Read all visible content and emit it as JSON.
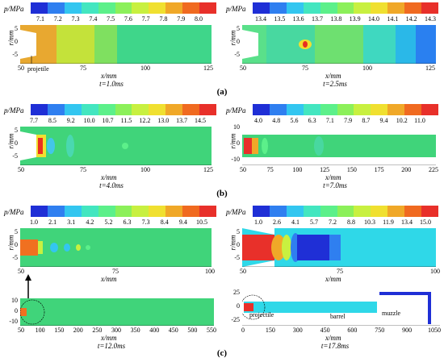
{
  "colorbar_colors": [
    "#1f2fd6",
    "#2f7ff0",
    "#33c6f0",
    "#43e6c0",
    "#5cf08a",
    "#8cf05a",
    "#c8f040",
    "#f0e030",
    "#f0a828",
    "#f06a20",
    "#e8302a"
  ],
  "ylabel": "r/mm",
  "xlabel": "x/mm",
  "pressure_unit": "p/MPa",
  "subfigure_labels": [
    "(a)",
    "(b)",
    "(c)"
  ],
  "panels": {
    "a1": {
      "ticks": [
        "7.1",
        "7.2",
        "7.3",
        "7.4",
        "7.5",
        "7.6",
        "7.7",
        "7.8",
        "7.9",
        "8.0"
      ],
      "yticks": [
        "5",
        "0",
        "-5"
      ],
      "xticks": [
        "50",
        "75",
        "100",
        "125"
      ],
      "time": "t=1.0ms",
      "annotation": "projetile"
    },
    "a2": {
      "ticks": [
        "13.4",
        "13.5",
        "13.6",
        "13.7",
        "13.8",
        "13.9",
        "14.0",
        "14.1",
        "14.2",
        "14.3"
      ],
      "yticks": [
        "5",
        "0",
        "-5"
      ],
      "xticks": [
        "50",
        "75",
        "100",
        "125"
      ],
      "time": "t=2.5ms"
    },
    "b1": {
      "ticks": [
        "7.7",
        "8.5",
        "9.2",
        "10.0",
        "10.7",
        "11.5",
        "12.2",
        "13.0",
        "13.7",
        "14.5"
      ],
      "yticks": [
        "5",
        "0",
        "-5"
      ],
      "xticks": [
        "50",
        "75",
        "100",
        "125"
      ],
      "time": "t=4.0ms"
    },
    "b2": {
      "ticks": [
        "4.0",
        "4.8",
        "5.6",
        "6.3",
        "7.1",
        "7.9",
        "8.7",
        "9.4",
        "10.2",
        "11.0"
      ],
      "yticks": [
        "10",
        "0",
        "-10"
      ],
      "xticks": [
        "50",
        "75",
        "100",
        "125",
        "150",
        "175",
        "200",
        "225"
      ],
      "time": "t=7.0ms"
    },
    "c1": {
      "ticks": [
        "1.0",
        "2.1",
        "3.1",
        "4.2",
        "5.2",
        "6.3",
        "7.3",
        "8.4",
        "9.4",
        "10.5"
      ],
      "yticks": [
        "5",
        "0",
        "-5"
      ],
      "xticks": [
        "50",
        "75",
        "100"
      ],
      "yticks_bottom": [
        "10",
        "0",
        "-10"
      ],
      "xticks_bottom": [
        "50",
        "100",
        "150",
        "200",
        "250",
        "300",
        "350",
        "400",
        "450",
        "500",
        "550"
      ],
      "time": "t=12.0ms"
    },
    "c2": {
      "ticks": [
        "1.0",
        "2.6",
        "4.1",
        "5.7",
        "7.2",
        "8.8",
        "10.3",
        "11.9",
        "13.4",
        "15.0"
      ],
      "yticks": [
        "5",
        "0",
        "-5"
      ],
      "xticks": [
        "50",
        "75",
        "100"
      ],
      "yticks_bottom": [
        "25",
        "0",
        "-25"
      ],
      "xticks_bottom": [
        "0",
        "150",
        "300",
        "450",
        "600",
        "750",
        "900",
        "1050"
      ],
      "time": "t=17.8ms",
      "labels": {
        "projectile": "projectile",
        "barrel": "barrel",
        "muzzle": "muzzle"
      }
    }
  }
}
